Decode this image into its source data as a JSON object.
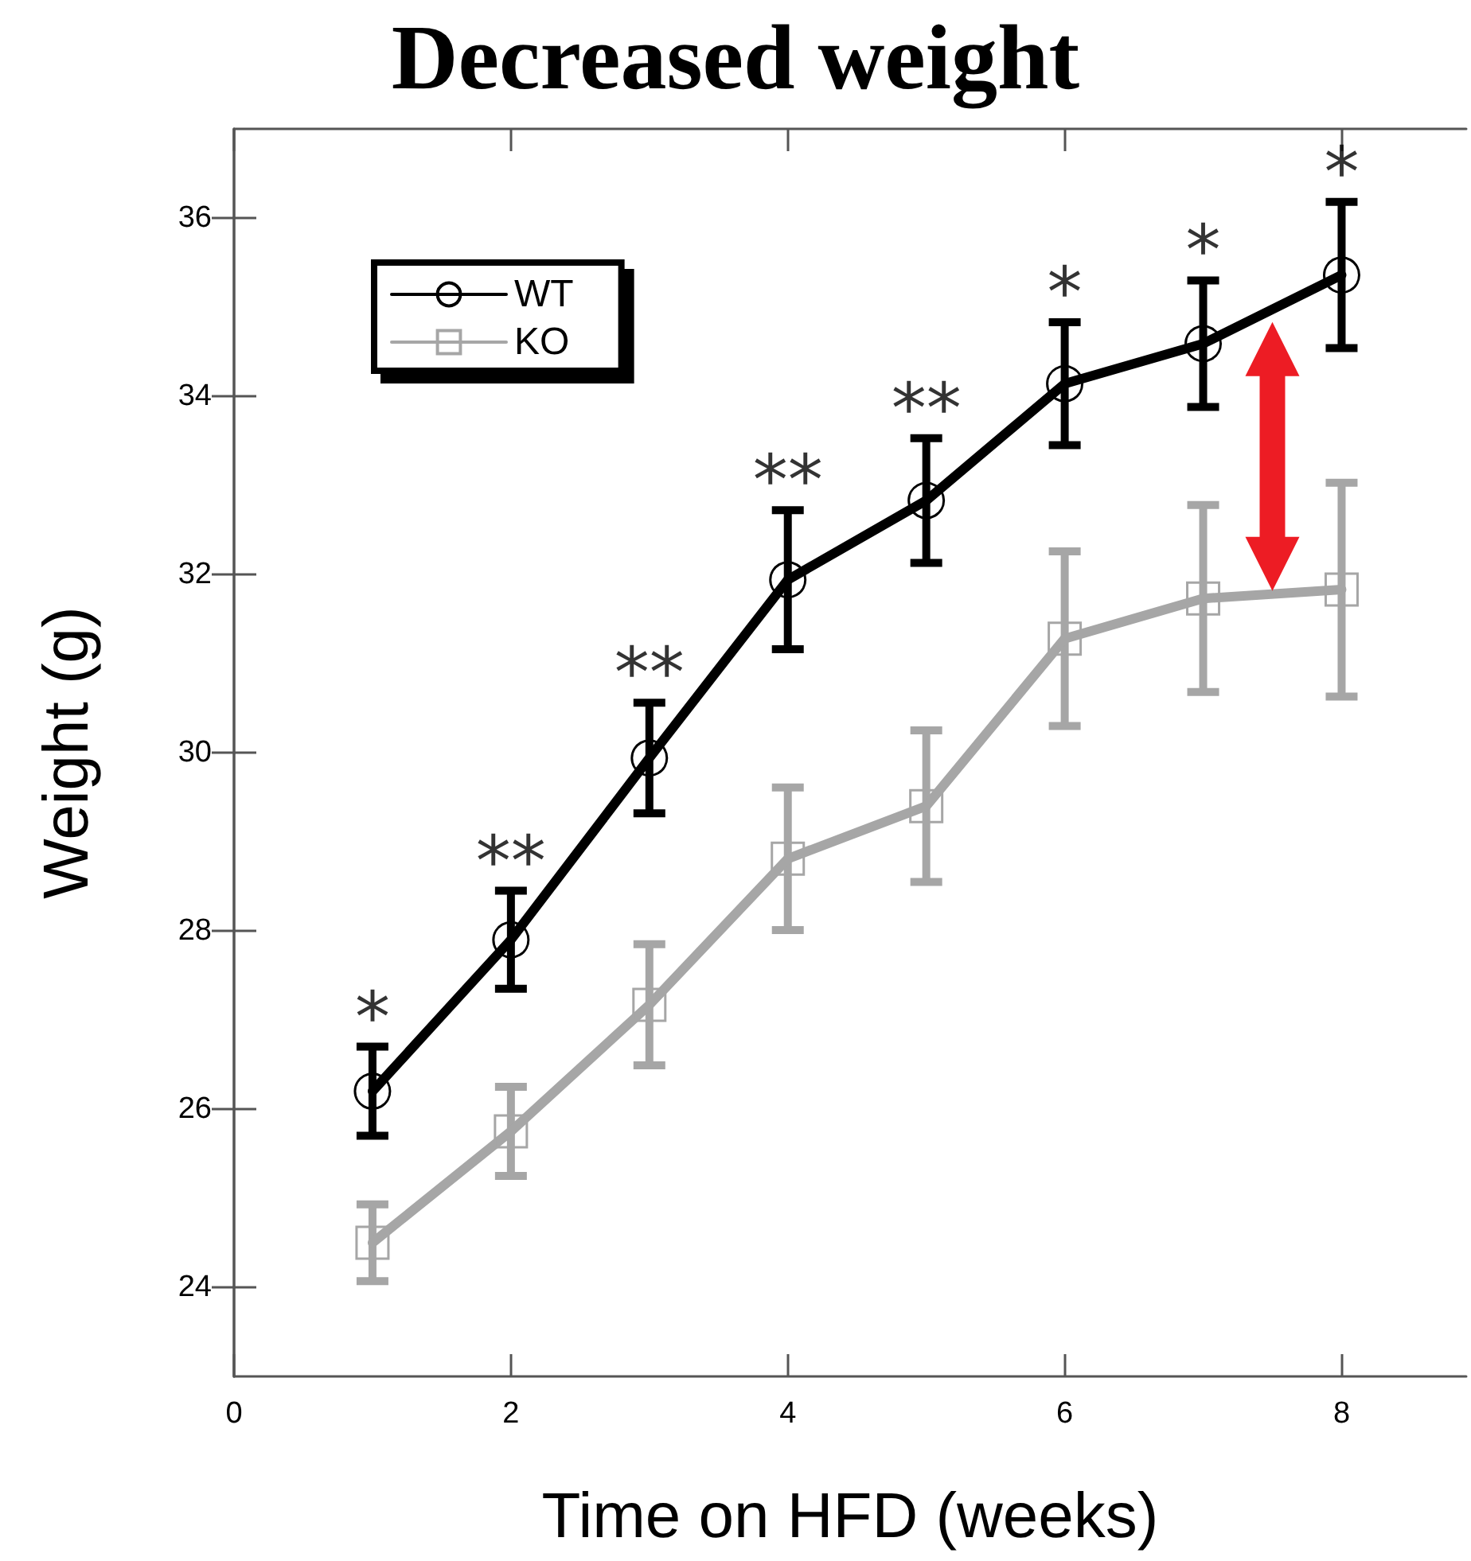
{
  "chart_data": {
    "type": "line",
    "title": "Decreased weight",
    "xlabel": "Time on HFD (weeks)",
    "ylabel": "Weight (g)",
    "x": [
      1,
      2,
      3,
      4,
      5,
      6,
      7,
      8
    ],
    "series": [
      {
        "name": "WT",
        "color": "#000000",
        "marker": "circle",
        "values": [
          26.2,
          27.9,
          29.94,
          31.94,
          32.83,
          34.14,
          34.59,
          35.36
        ],
        "errors": [
          0.5,
          0.55,
          0.62,
          0.78,
          0.7,
          0.69,
          0.71,
          0.82
        ]
      },
      {
        "name": "KO",
        "color": "#a6a6a6",
        "marker": "square",
        "values": [
          24.5,
          25.75,
          27.17,
          28.81,
          29.4,
          31.28,
          31.73,
          31.83
        ],
        "errors": [
          0.43,
          0.5,
          0.68,
          0.8,
          0.85,
          0.98,
          1.05,
          1.2
        ]
      }
    ],
    "annotations": [
      {
        "text": "*",
        "x": 1,
        "y": 26.7
      },
      {
        "text": "**",
        "x": 2,
        "y": 28.45
      },
      {
        "text": "**",
        "x": 3,
        "y": 30.56
      },
      {
        "text": "**",
        "x": 4,
        "y": 32.72
      },
      {
        "text": "**",
        "x": 5,
        "y": 33.53
      },
      {
        "text": "*",
        "x": 6,
        "y": 34.83
      },
      {
        "text": "*",
        "x": 7,
        "y": 35.3
      },
      {
        "text": "*",
        "x": 8,
        "y": 36.18
      }
    ],
    "xlim": [
      0,
      8.9
    ],
    "xticks": [
      0,
      2,
      4,
      6,
      8
    ],
    "ylim": [
      23,
      37
    ],
    "yticks": [
      24,
      26,
      28,
      30,
      32,
      34,
      36
    ],
    "grid": false,
    "legend": "top left",
    "line_style": "solid"
  }
}
